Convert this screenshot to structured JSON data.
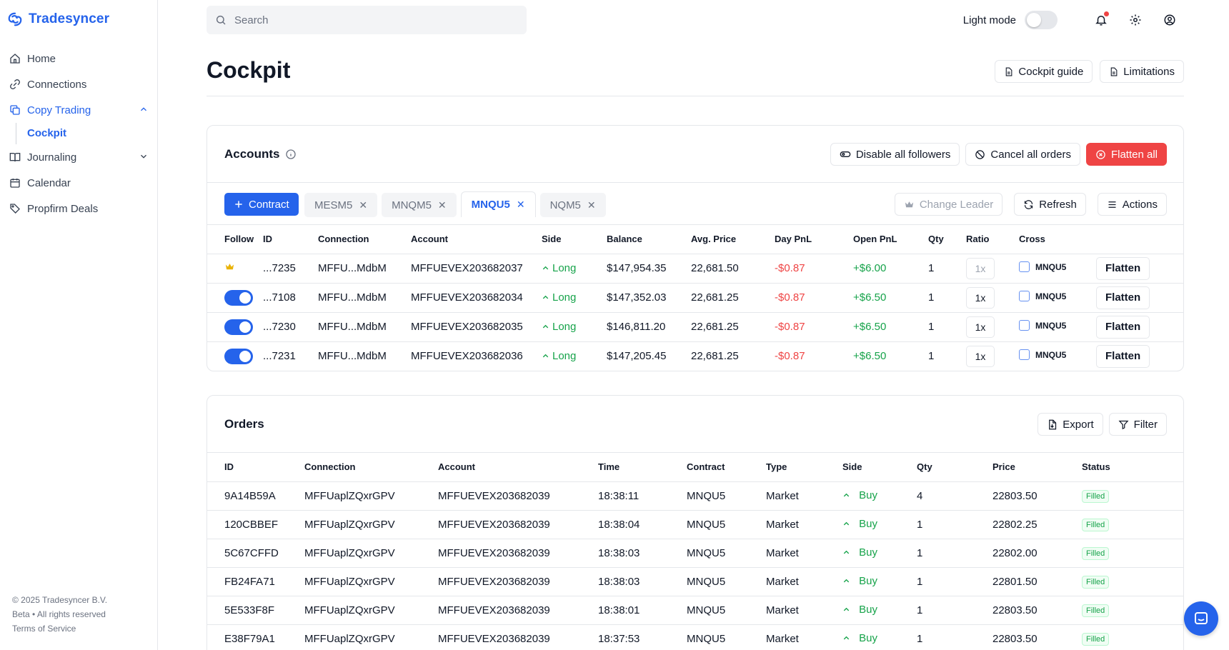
{
  "app": {
    "name": "Tradesyncer"
  },
  "sidebar": {
    "items": [
      {
        "label": "Home",
        "icon": "home-icon"
      },
      {
        "label": "Connections",
        "icon": "link-icon"
      },
      {
        "label": "Copy Trading",
        "icon": "copy-icon",
        "expanded": true
      },
      {
        "label": "Journaling",
        "icon": "book-icon",
        "expanded": false
      },
      {
        "label": "Calendar",
        "icon": "calendar-icon"
      },
      {
        "label": "Propfirm Deals",
        "icon": "tag-icon"
      }
    ],
    "sub_item": "Cockpit",
    "footer": {
      "copyright": "© 2025 Tradesyncer B.V.",
      "beta": "Beta",
      "rights": "All rights reserved",
      "terms": "Terms of Service"
    }
  },
  "topbar": {
    "search_placeholder": "Search",
    "light_mode_label": "Light mode",
    "light_mode_on": false
  },
  "page": {
    "title": "Cockpit",
    "guide_label": "Cockpit guide",
    "limitations_label": "Limitations"
  },
  "accounts": {
    "title": "Accounts",
    "disable_followers": "Disable all followers",
    "cancel_orders": "Cancel all orders",
    "flatten_all": "Flatten all",
    "add_contract": "Contract",
    "tabs": [
      {
        "label": "MESM5",
        "active": false
      },
      {
        "label": "MNQM5",
        "active": false
      },
      {
        "label": "MNQU5",
        "active": true
      },
      {
        "label": "NQM5",
        "active": false
      }
    ],
    "change_leader": "Change Leader",
    "refresh": "Refresh",
    "actions": "Actions",
    "columns": [
      "Follow",
      "ID",
      "Connection",
      "Account",
      "Side",
      "Balance",
      "Avg. Price",
      "Day PnL",
      "Open PnL",
      "Qty",
      "Ratio",
      "Cross"
    ],
    "rows": [
      {
        "leader": true,
        "id": "...7235",
        "connection": "MFFU...MdbM",
        "account": "MFFUEVEX203682037",
        "side": "Long",
        "balance": "$147,954.35",
        "avg_price": "22,681.50",
        "day_pnl": "-$0.87",
        "open_pnl": "+$6.00",
        "qty": "1",
        "ratio": "1x",
        "cross": "MNQU5",
        "flatten": "Flatten"
      },
      {
        "leader": false,
        "id": "...7108",
        "connection": "MFFU...MdbM",
        "account": "MFFUEVEX203682034",
        "side": "Long",
        "balance": "$147,352.03",
        "avg_price": "22,681.25",
        "day_pnl": "-$0.87",
        "open_pnl": "+$6.50",
        "qty": "1",
        "ratio": "1x",
        "cross": "MNQU5",
        "flatten": "Flatten"
      },
      {
        "leader": false,
        "id": "...7230",
        "connection": "MFFU...MdbM",
        "account": "MFFUEVEX203682035",
        "side": "Long",
        "balance": "$146,811.20",
        "avg_price": "22,681.25",
        "day_pnl": "-$0.87",
        "open_pnl": "+$6.50",
        "qty": "1",
        "ratio": "1x",
        "cross": "MNQU5",
        "flatten": "Flatten"
      },
      {
        "leader": false,
        "id": "...7231",
        "connection": "MFFU...MdbM",
        "account": "MFFUEVEX203682036",
        "side": "Long",
        "balance": "$147,205.45",
        "avg_price": "22,681.25",
        "day_pnl": "-$0.87",
        "open_pnl": "+$6.50",
        "qty": "1",
        "ratio": "1x",
        "cross": "MNQU5",
        "flatten": "Flatten"
      }
    ]
  },
  "orders": {
    "title": "Orders",
    "export": "Export",
    "filter": "Filter",
    "columns": [
      "ID",
      "Connection",
      "Account",
      "Time",
      "Contract",
      "Type",
      "Side",
      "Qty",
      "Price",
      "Status"
    ],
    "rows": [
      {
        "id": "9A14B59A",
        "connection": "MFFUaplZQxrGPV",
        "account": "MFFUEVEX203682039",
        "time": "18:38:11",
        "contract": "MNQU5",
        "type": "Market",
        "side": "Buy",
        "qty": "4",
        "price": "22803.50",
        "status": "Filled"
      },
      {
        "id": "120CBBEF",
        "connection": "MFFUaplZQxrGPV",
        "account": "MFFUEVEX203682039",
        "time": "18:38:04",
        "contract": "MNQU5",
        "type": "Market",
        "side": "Buy",
        "qty": "1",
        "price": "22802.25",
        "status": "Filled"
      },
      {
        "id": "5C67CFFD",
        "connection": "MFFUaplZQxrGPV",
        "account": "MFFUEVEX203682039",
        "time": "18:38:03",
        "contract": "MNQU5",
        "type": "Market",
        "side": "Buy",
        "qty": "1",
        "price": "22802.00",
        "status": "Filled"
      },
      {
        "id": "FB24FA71",
        "connection": "MFFUaplZQxrGPV",
        "account": "MFFUEVEX203682039",
        "time": "18:38:03",
        "contract": "MNQU5",
        "type": "Market",
        "side": "Buy",
        "qty": "1",
        "price": "22801.50",
        "status": "Filled"
      },
      {
        "id": "5E533F8F",
        "connection": "MFFUaplZQxrGPV",
        "account": "MFFUEVEX203682039",
        "time": "18:38:01",
        "contract": "MNQU5",
        "type": "Market",
        "side": "Buy",
        "qty": "1",
        "price": "22803.50",
        "status": "Filled"
      },
      {
        "id": "E38F79A1",
        "connection": "MFFUaplZQxrGPV",
        "account": "MFFUEVEX203682039",
        "time": "18:37:53",
        "contract": "MNQU5",
        "type": "Market",
        "side": "Buy",
        "qty": "1",
        "price": "22803.50",
        "status": "Filled"
      }
    ]
  },
  "colors": {
    "brand": "#2563eb",
    "danger": "#ef4444",
    "success": "#16a34a",
    "leader_crown": "#eab308"
  }
}
